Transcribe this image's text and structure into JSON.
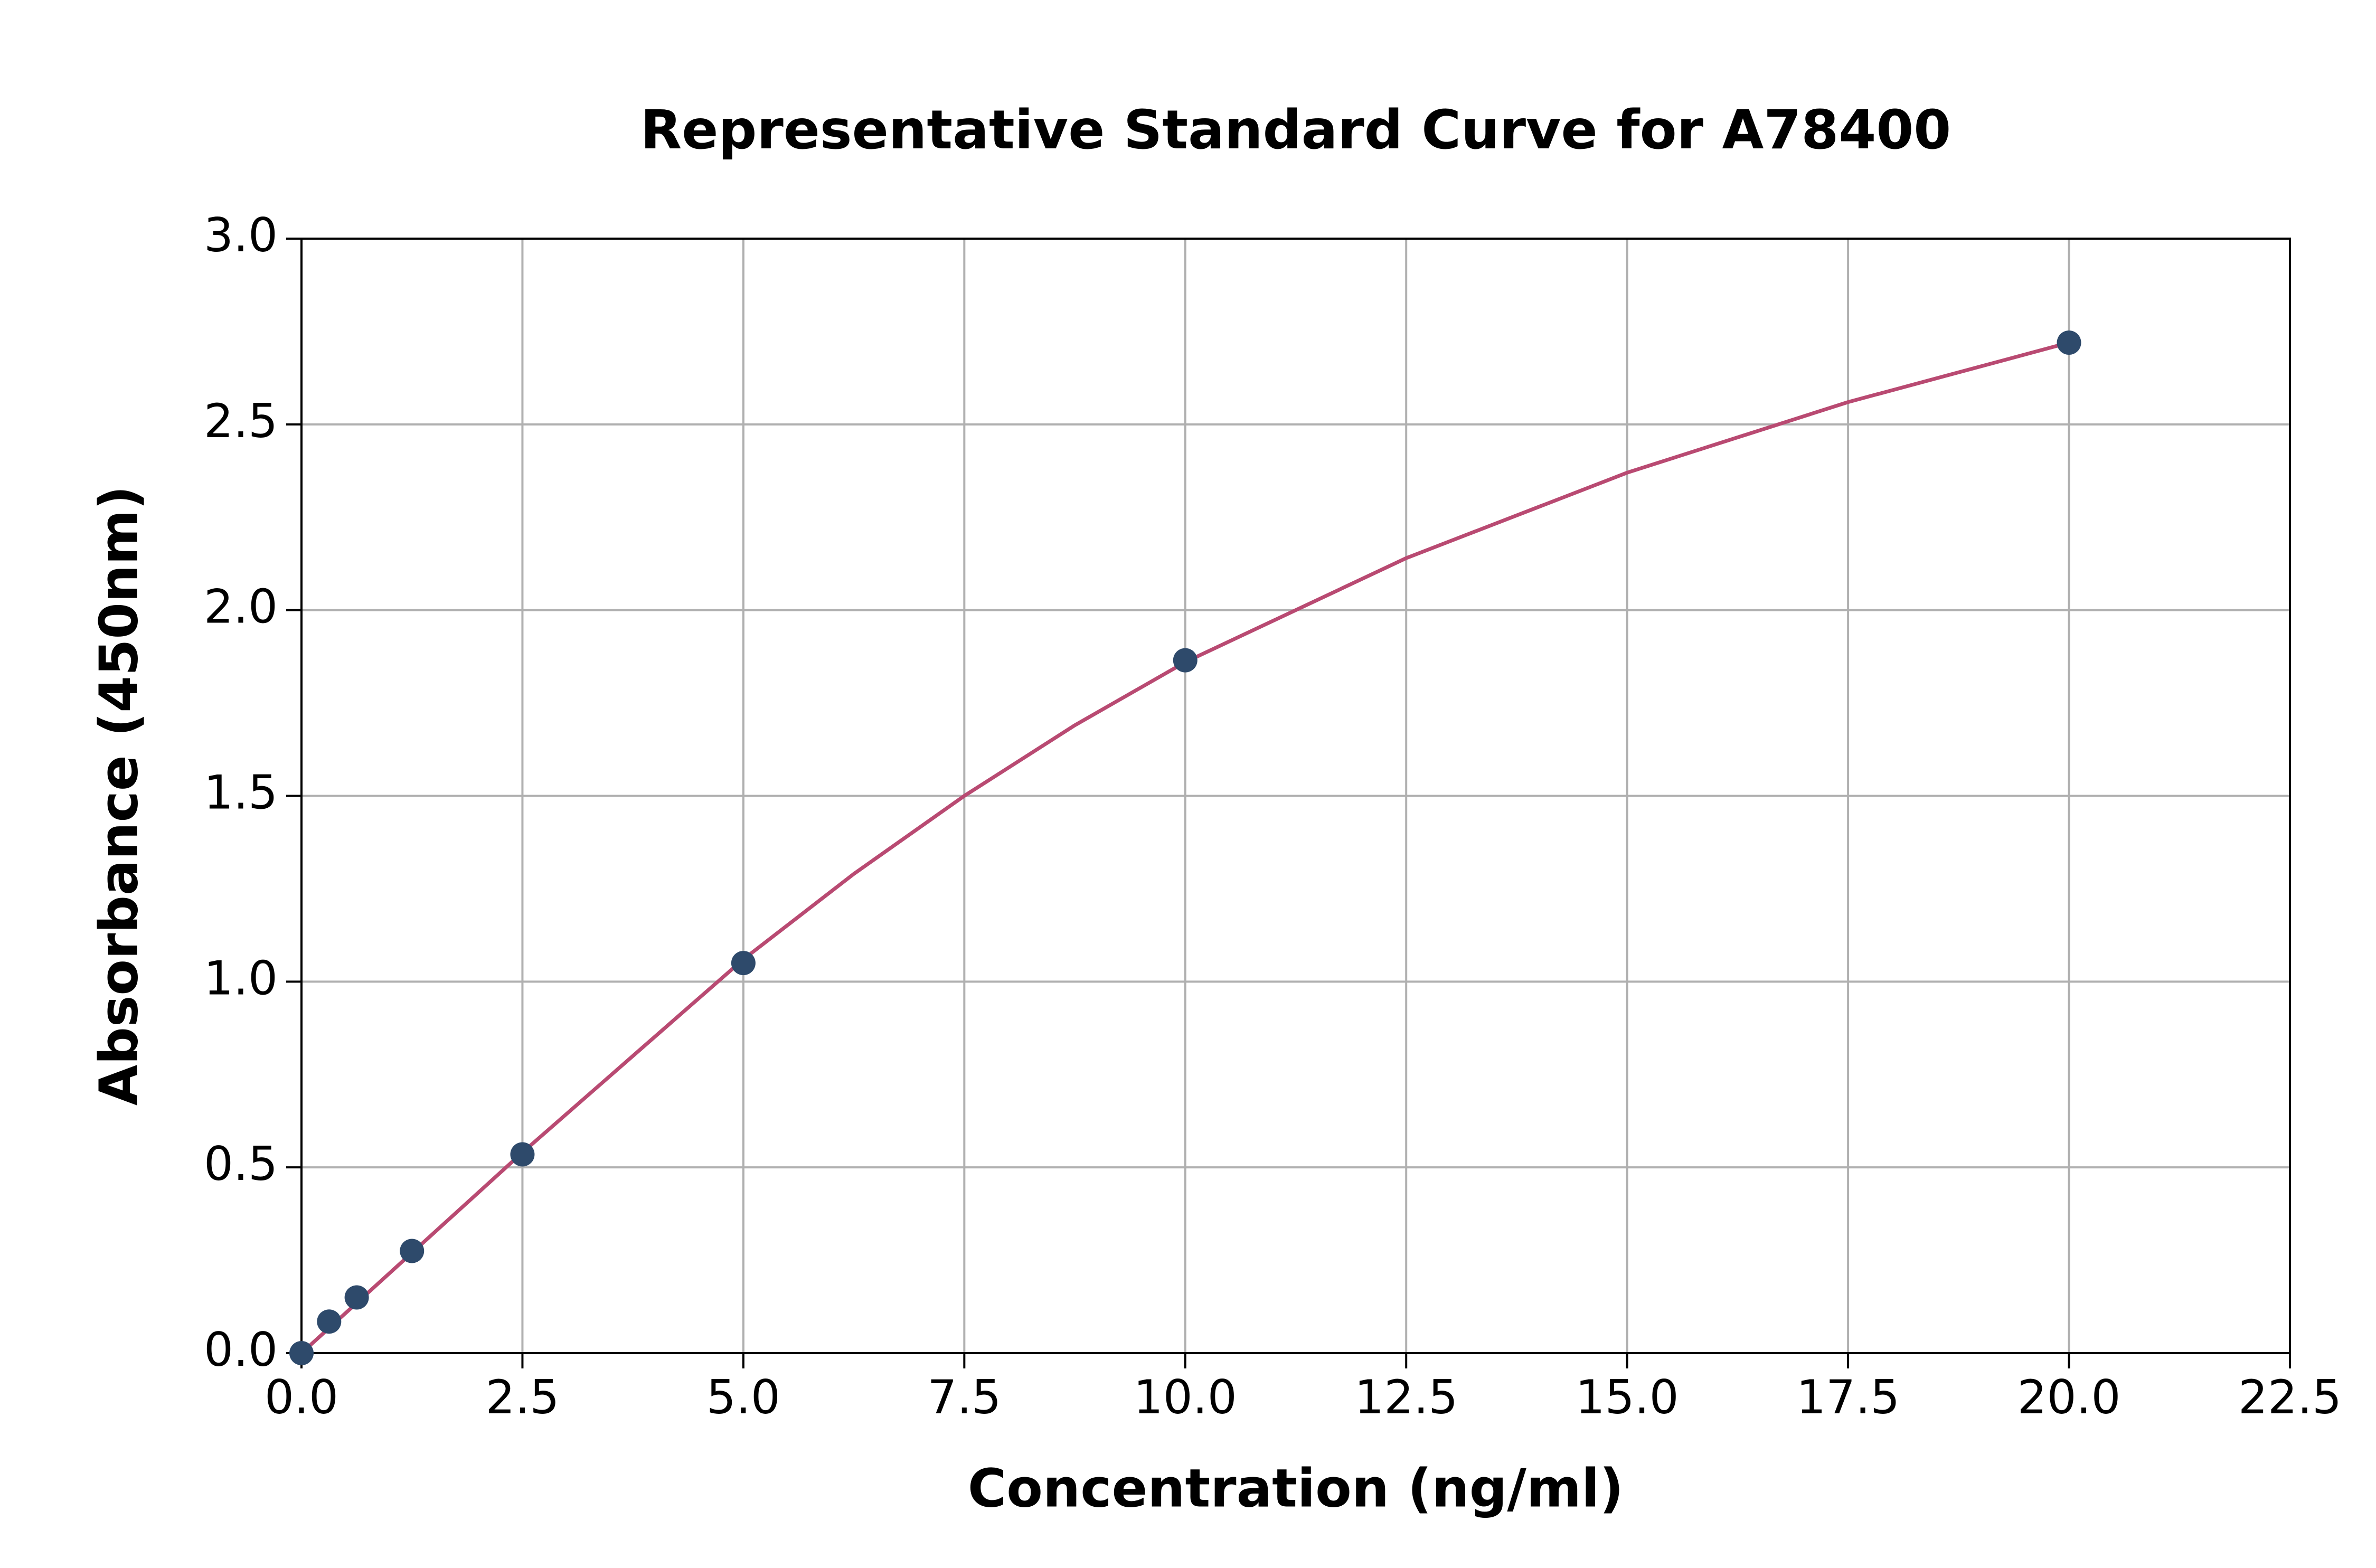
{
  "chart_data": {
    "type": "scatter",
    "title": "Representative Standard Curve for A78400",
    "x_label": "Concentration (ng/ml)",
    "y_label": "Absorbance (450nm)",
    "x": [
      0,
      0.3125,
      0.625,
      1.25,
      2.5,
      5,
      10,
      20
    ],
    "values": [
      0.0,
      0.085,
      0.15,
      0.275,
      0.535,
      1.05,
      1.865,
      2.72
    ],
    "color": "#2e4a6b",
    "fit": {
      "color": "#b94a72",
      "x": [
        0,
        1.25,
        2.5,
        3.75,
        5,
        6.25,
        7.5,
        8.75,
        10,
        12.5,
        15,
        17.5,
        20
      ],
      "values": [
        0.0,
        0.27,
        0.54,
        0.8,
        1.06,
        1.29,
        1.5,
        1.69,
        1.86,
        2.14,
        2.37,
        2.56,
        2.72
      ]
    },
    "xlim": [
      0,
      22.5
    ],
    "ylim": [
      0,
      3
    ],
    "xticks": [
      {
        "value": 0,
        "label": "0.0"
      },
      2.5,
      {
        "value": 5,
        "label": "5.0"
      },
      7.5,
      {
        "value": 10,
        "label": "10.0"
      },
      12.5,
      {
        "value": 15,
        "label": "15.0"
      },
      17.5,
      {
        "value": 20,
        "label": "20.0"
      },
      22.5
    ],
    "yticks": [
      {
        "value": 0,
        "label": "0.0"
      },
      0.5,
      {
        "value": 1,
        "label": "1.0"
      },
      1.5,
      {
        "value": 2,
        "label": "2.0"
      },
      2.5,
      {
        "value": 3,
        "label": "3.0"
      }
    ],
    "grid": true
  }
}
